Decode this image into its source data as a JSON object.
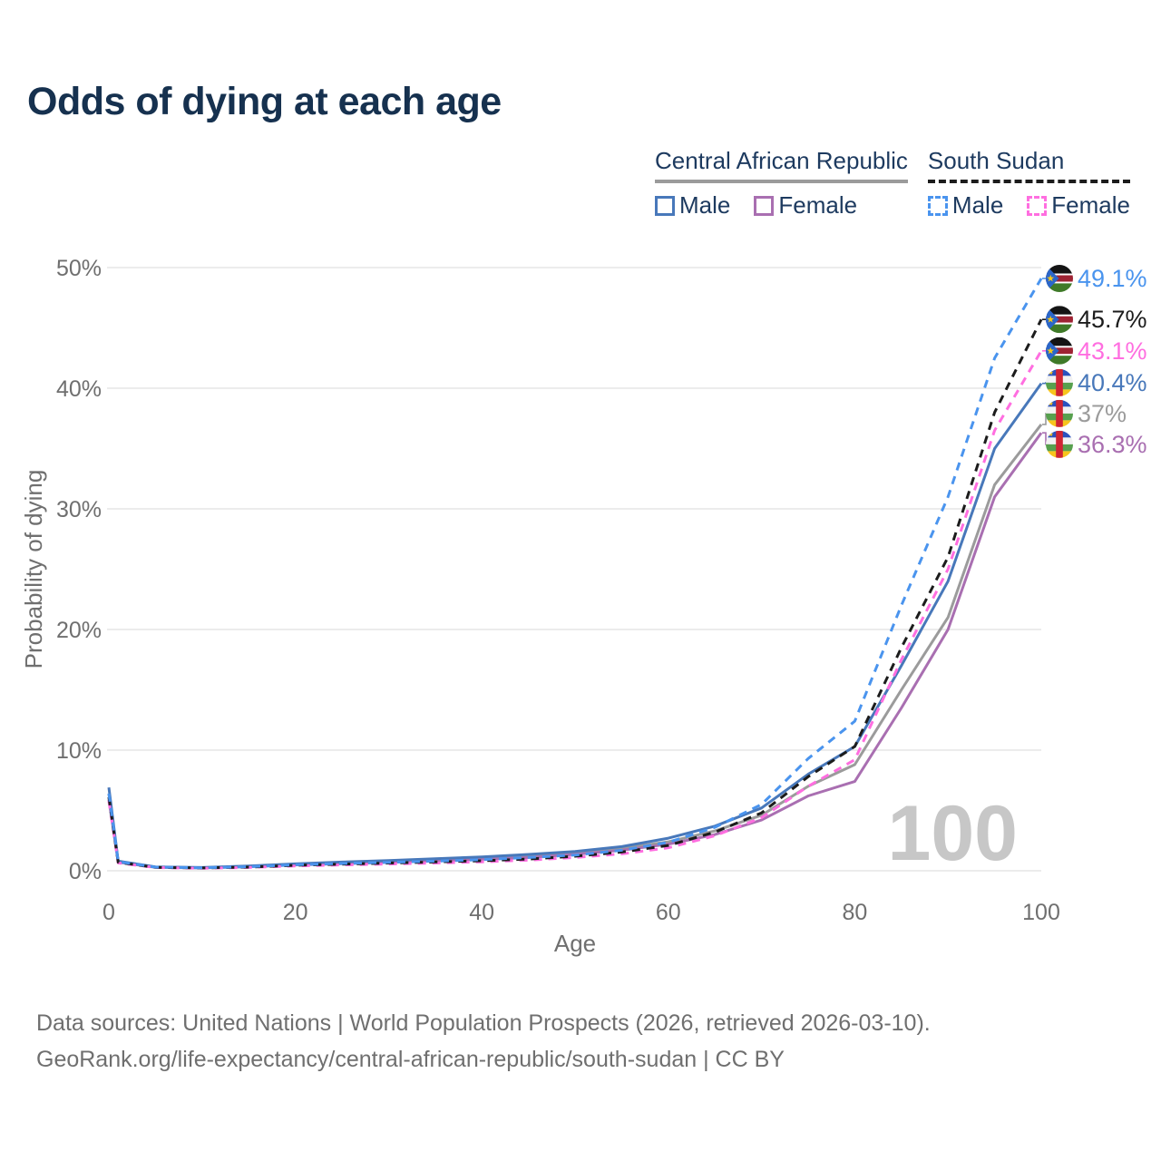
{
  "title": "Odds of dying at each age",
  "legend": {
    "car": {
      "title": "Central African Republic",
      "male": "Male",
      "female": "Female"
    },
    "ss": {
      "title": "South Sudan",
      "male": "Male",
      "female": "Female"
    }
  },
  "watermark": "100",
  "footer": {
    "line1": "Data sources: United Nations | World Population Prospects (2026, retrieved 2026-03-10).",
    "line2": "GeoRank.org/life-expectancy/central-african-republic/south-sudan | CC BY"
  },
  "colors": {
    "c-title": "#16314f",
    "c-navy": "#1d3a5f",
    "c-axis": "#6f6f6f",
    "c-grid": "#e5e5e5",
    "c-watermark": "#c7c7c7",
    "c-footer": "#6f6f6f",
    "c-car-male": "#4878ba",
    "c-car-female": "#a96fb1",
    "c-car-total": "#9b9b9b",
    "c-ss-male": "#4a94ee",
    "c-ss-female": "#ff6ee0",
    "c-ss-total": "#1c1c1c"
  },
  "chart_data": {
    "type": "line",
    "title": "Odds of dying at each age",
    "xlabel": "Age",
    "ylabel": "Probability of dying",
    "xlim": [
      0,
      100
    ],
    "ylim": [
      0,
      50
    ],
    "grid": "horizontal",
    "legend_position": "top-right",
    "xticks": [
      0,
      20,
      40,
      60,
      80,
      100
    ],
    "ytick_values": [
      0,
      10,
      20,
      30,
      40,
      50
    ],
    "yticks": [
      "0%",
      "10%",
      "20%",
      "30%",
      "40%",
      "50%"
    ],
    "x": [
      0,
      1,
      5,
      10,
      15,
      20,
      25,
      30,
      35,
      40,
      45,
      50,
      55,
      60,
      65,
      70,
      75,
      80,
      85,
      90,
      95,
      100
    ],
    "series": [
      {
        "id": "car-total",
        "name": "Central African Republic (both sexes)",
        "color": "#9b9b9b",
        "dash": false,
        "flag": "central-african-republic",
        "end_label": "37%",
        "values": [
          6.4,
          0.75,
          0.3,
          0.25,
          0.37,
          0.52,
          0.65,
          0.77,
          0.9,
          1.03,
          1.2,
          1.45,
          1.85,
          2.4,
          3.3,
          4.6,
          7.0,
          8.8,
          15.0,
          21.0,
          32.0,
          37.0
        ]
      },
      {
        "id": "car-female",
        "name": "Central African Republic Female",
        "color": "#a96fb1",
        "dash": false,
        "flag": "central-african-republic",
        "end_label": "36.3%",
        "values": [
          5.9,
          0.7,
          0.28,
          0.23,
          0.34,
          0.48,
          0.59,
          0.7,
          0.82,
          0.95,
          1.1,
          1.35,
          1.7,
          2.2,
          3.0,
          4.2,
          6.2,
          7.4,
          13.5,
          20.0,
          31.0,
          36.3
        ]
      },
      {
        "id": "car-male",
        "name": "Central African Republic Male",
        "color": "#4878ba",
        "dash": false,
        "flag": "central-african-republic",
        "end_label": "40.4%",
        "values": [
          6.9,
          0.8,
          0.32,
          0.27,
          0.4,
          0.57,
          0.72,
          0.85,
          1.0,
          1.15,
          1.35,
          1.6,
          2.0,
          2.7,
          3.7,
          5.2,
          8.0,
          10.3,
          17.0,
          24.0,
          35.0,
          40.4
        ]
      },
      {
        "id": "ss-female",
        "name": "South Sudan Female",
        "color": "#ff6ee0",
        "dash": true,
        "flag": "south-sudan",
        "end_label": "43.1%",
        "values": [
          5.8,
          0.65,
          0.26,
          0.21,
          0.27,
          0.4,
          0.48,
          0.56,
          0.64,
          0.74,
          0.88,
          1.1,
          1.4,
          1.9,
          2.9,
          4.4,
          7.0,
          9.2,
          17.5,
          25.0,
          36.5,
          43.1
        ]
      },
      {
        "id": "ss-total",
        "name": "South Sudan (both sexes)",
        "color": "#1c1c1c",
        "dash": true,
        "flag": "south-sudan",
        "end_label": "45.7%",
        "values": [
          6.1,
          0.7,
          0.28,
          0.23,
          0.3,
          0.45,
          0.55,
          0.64,
          0.73,
          0.83,
          0.97,
          1.2,
          1.55,
          2.1,
          3.2,
          4.8,
          7.8,
          10.3,
          18.5,
          26.0,
          38.0,
          45.7
        ]
      },
      {
        "id": "ss-male",
        "name": "South Sudan Male",
        "color": "#4a94ee",
        "dash": true,
        "flag": "south-sudan",
        "end_label": "49.1%",
        "values": [
          6.4,
          0.75,
          0.3,
          0.25,
          0.33,
          0.5,
          0.6,
          0.7,
          0.8,
          0.92,
          1.1,
          1.3,
          1.7,
          2.35,
          3.6,
          5.5,
          9.3,
          12.4,
          22.0,
          31.0,
          42.5,
          49.1
        ]
      }
    ]
  }
}
